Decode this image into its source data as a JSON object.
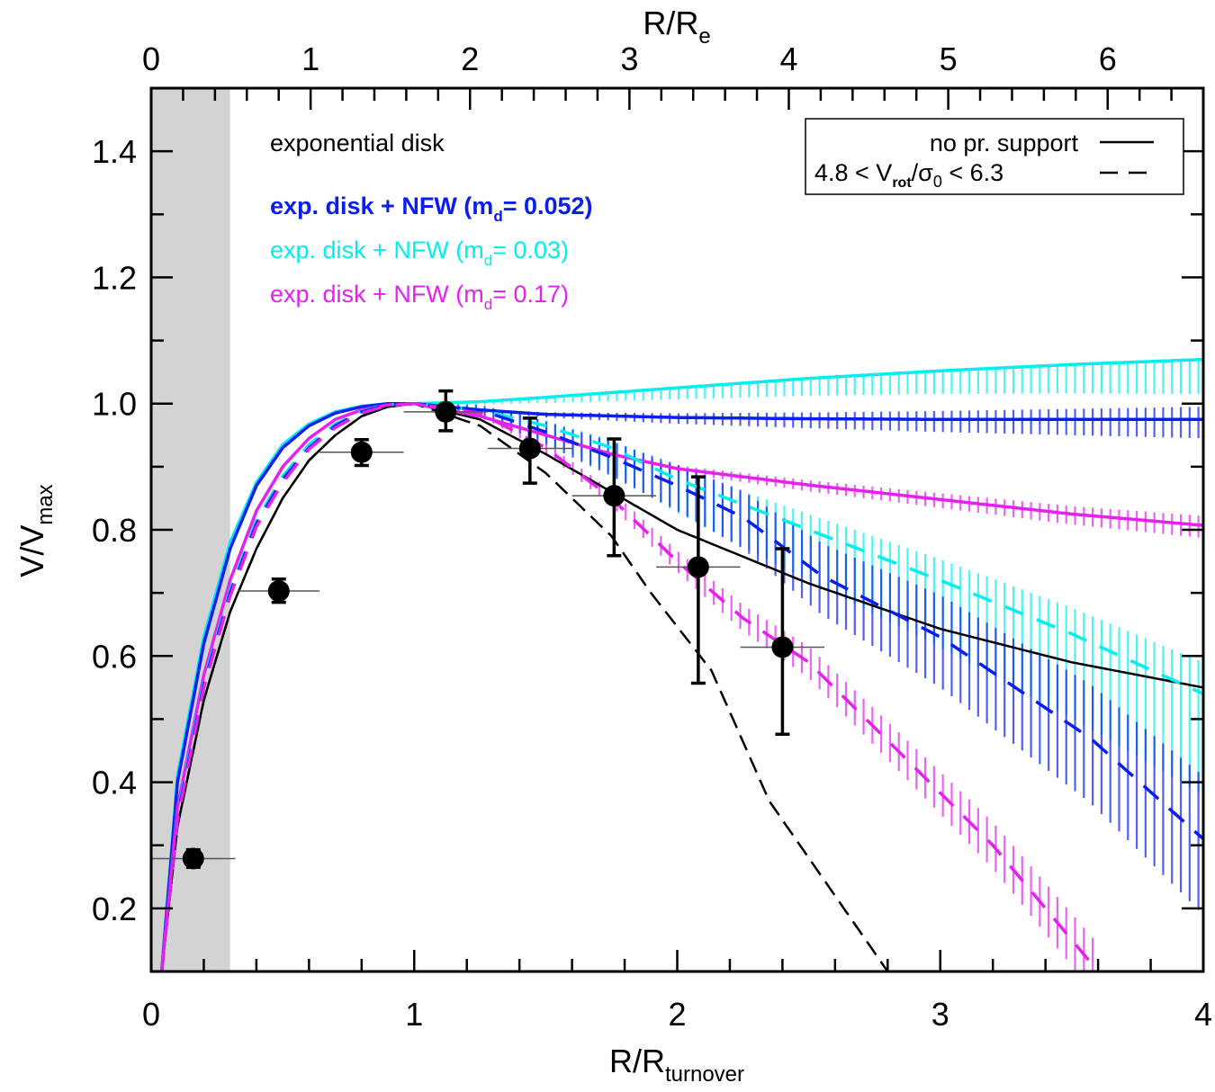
{
  "chart_data": {
    "type": "line",
    "xlabel": "R/R",
    "xlabel_sub": "turnover",
    "ylabel": "V/V",
    "ylabel_sub": "max",
    "top_xlabel": "R/R",
    "top_xlabel_sub": "e",
    "xlim": [
      0,
      4
    ],
    "ylim": [
      0.1,
      1.5
    ],
    "top_xlim_R_over_Re": [
      0,
      6.6
    ],
    "x_ticks": [
      "0",
      "1",
      "2",
      "3",
      "4"
    ],
    "y_ticks": [
      "0.2",
      "0.4",
      "0.6",
      "0.8",
      "1.0",
      "1.2",
      "1.4"
    ],
    "top_ticks": [
      "0",
      "1",
      "2",
      "3",
      "4",
      "5",
      "6"
    ],
    "grid": false,
    "shaded_region_x": [
      0,
      0.3
    ],
    "shaded_color": "#d3d3d3",
    "annotations": [
      {
        "text": "exponential disk",
        "color": "#000000",
        "bold": false
      },
      {
        "text": "exp. disk + NFW (m",
        "sub": "d",
        "tail": "= 0.052)",
        "color": "#0a1ef0",
        "bold": true
      },
      {
        "text": "exp. disk + NFW (m",
        "sub": "d",
        "tail": "= 0.03)",
        "color": "#00eeee",
        "bold": false
      },
      {
        "text": "exp. disk + NFW (m",
        "sub": "d",
        "tail": "= 0.17)",
        "color": "#e620f0",
        "bold": false
      }
    ],
    "legend": {
      "position": "top-right",
      "entries": [
        {
          "label": "no pr. support",
          "style": "solid"
        },
        {
          "label_pre": "4.8 < V",
          "label_sub1": "rot",
          "label_mid": "/σ",
          "label_sub2": "0",
          "label_post": " < 6.3",
          "style": "dashed"
        }
      ]
    },
    "data_points": {
      "x": [
        0.16,
        0.485,
        0.8,
        1.12,
        1.44,
        1.76,
        2.08,
        2.4
      ],
      "y": [
        0.279,
        0.703,
        0.923,
        0.987,
        0.929,
        0.854,
        0.741,
        0.614
      ],
      "y_err_low": [
        0.265,
        0.685,
        0.902,
        0.957,
        0.874,
        0.759,
        0.557,
        0.476
      ],
      "y_err_high": [
        0.293,
        0.722,
        0.943,
        1.02,
        0.977,
        0.944,
        0.884,
        0.77
      ],
      "x_bin_low": [
        0.0,
        0.33,
        0.64,
        0.96,
        1.28,
        1.6,
        1.92,
        2.24
      ],
      "x_bin_high": [
        0.32,
        0.64,
        0.96,
        1.28,
        1.6,
        1.92,
        2.24,
        2.56
      ]
    },
    "series": [
      {
        "model": "exponential disk",
        "style": "solid",
        "color": "#000000",
        "x": [
          0.04,
          0.1,
          0.2,
          0.3,
          0.4,
          0.5,
          0.6,
          0.7,
          0.8,
          0.9,
          1.0,
          1.25,
          1.5,
          1.75,
          2.0,
          2.5,
          3.0,
          3.5,
          4.0
        ],
        "y": [
          0.1,
          0.33,
          0.53,
          0.67,
          0.77,
          0.85,
          0.91,
          0.95,
          0.98,
          0.995,
          1.0,
          0.975,
          0.92,
          0.86,
          0.8,
          0.715,
          0.643,
          0.59,
          0.55
        ]
      },
      {
        "model": "exponential disk",
        "style": "dashed",
        "color": "#000000",
        "x": [
          0.04,
          0.1,
          0.2,
          0.3,
          0.4,
          0.5,
          0.6,
          0.7,
          0.8,
          0.9,
          1.0,
          1.25,
          1.5,
          1.75,
          1.9,
          2.13,
          2.35,
          2.6,
          2.8
        ],
        "y": [
          0.1,
          0.33,
          0.53,
          0.67,
          0.77,
          0.85,
          0.91,
          0.95,
          0.98,
          0.995,
          1.0,
          0.965,
          0.89,
          0.79,
          0.7,
          0.577,
          0.37,
          0.22,
          0.1
        ]
      },
      {
        "model": "exp. disk + NFW (md= 0.03)",
        "style": "solid",
        "color": "#00eeee",
        "band": [
          0.0,
          0.055
        ],
        "x": [
          0.04,
          0.1,
          0.2,
          0.3,
          0.4,
          0.5,
          0.6,
          0.7,
          0.8,
          0.9,
          1.0,
          1.25,
          1.5,
          2.0,
          2.5,
          3.0,
          3.5,
          4.0
        ],
        "y": [
          0.1,
          0.41,
          0.63,
          0.78,
          0.875,
          0.935,
          0.968,
          0.987,
          0.996,
          1.0,
          1.0,
          1.003,
          1.01,
          1.025,
          1.04,
          1.052,
          1.062,
          1.07
        ]
      },
      {
        "model": "exp. disk + NFW (md= 0.052)",
        "style": "solid",
        "color": "#0a1ef0",
        "band": [
          0.02,
          0.03
        ],
        "x": [
          0.04,
          0.1,
          0.2,
          0.3,
          0.4,
          0.5,
          0.6,
          0.7,
          0.8,
          0.9,
          1.0,
          1.25,
          1.5,
          2.0,
          2.5,
          3.0,
          4.0
        ],
        "y": [
          0.1,
          0.4,
          0.62,
          0.77,
          0.87,
          0.93,
          0.965,
          0.985,
          0.995,
          1.0,
          1.0,
          0.99,
          0.983,
          0.978,
          0.976,
          0.975,
          0.975
        ]
      },
      {
        "model": "exp. disk + NFW (md= 0.17)",
        "style": "solid",
        "color": "#e620f0",
        "band": [
          0.015,
          0.02
        ],
        "x": [
          0.04,
          0.1,
          0.2,
          0.3,
          0.4,
          0.5,
          0.6,
          0.7,
          0.8,
          0.9,
          1.0,
          1.25,
          1.5,
          1.75,
          2.0,
          2.5,
          3.0,
          3.5,
          4.0
        ],
        "y": [
          0.1,
          0.36,
          0.57,
          0.72,
          0.83,
          0.9,
          0.945,
          0.975,
          0.99,
          0.998,
          1.0,
          0.98,
          0.95,
          0.92,
          0.897,
          0.871,
          0.848,
          0.825,
          0.807
        ]
      },
      {
        "model": "exp. disk + NFW (md= 0.03)",
        "style": "dashed",
        "color": "#00eeee",
        "band": [
          0.05,
          0.16
        ],
        "x": [
          0.04,
          0.1,
          0.2,
          0.3,
          0.4,
          0.5,
          0.6,
          0.7,
          0.8,
          0.9,
          1.0,
          1.25,
          1.5,
          1.75,
          2.0,
          2.25,
          2.5,
          3.0,
          3.5,
          4.0
        ],
        "y": [
          0.1,
          0.35,
          0.56,
          0.705,
          0.815,
          0.885,
          0.935,
          0.968,
          0.988,
          0.998,
          1.0,
          0.99,
          0.965,
          0.93,
          0.88,
          0.84,
          0.8,
          0.72,
          0.635,
          0.54
        ]
      },
      {
        "model": "exp. disk + NFW (md= 0.052)",
        "style": "dashed",
        "color": "#0a1ef0",
        "band": [
          0.1,
          0.12
        ],
        "x": [
          0.04,
          0.1,
          0.2,
          0.3,
          0.4,
          0.5,
          0.6,
          0.7,
          0.8,
          0.9,
          1.0,
          1.25,
          1.5,
          1.75,
          2.0,
          2.25,
          2.55,
          3.0,
          3.57,
          4.0
        ],
        "y": [
          0.1,
          0.345,
          0.555,
          0.7,
          0.81,
          0.88,
          0.93,
          0.965,
          0.987,
          0.998,
          1.0,
          0.99,
          0.955,
          0.915,
          0.87,
          0.82,
          0.727,
          0.63,
          0.47,
          0.31
        ]
      },
      {
        "model": "exp. disk + NFW (md= 0.17)",
        "style": "dashed",
        "color": "#e620f0",
        "band": [
          0.05,
          0.05
        ],
        "x": [
          0.04,
          0.1,
          0.2,
          0.3,
          0.4,
          0.5,
          0.6,
          0.7,
          0.8,
          0.9,
          1.0,
          1.25,
          1.5,
          1.75,
          2.0,
          2.25,
          2.5,
          2.8,
          3.2,
          3.6
        ],
        "y": [
          0.1,
          0.34,
          0.55,
          0.695,
          0.805,
          0.875,
          0.928,
          0.962,
          0.985,
          0.997,
          1.0,
          0.985,
          0.93,
          0.85,
          0.75,
          0.66,
          0.59,
          0.466,
          0.3,
          0.1
        ]
      }
    ]
  }
}
